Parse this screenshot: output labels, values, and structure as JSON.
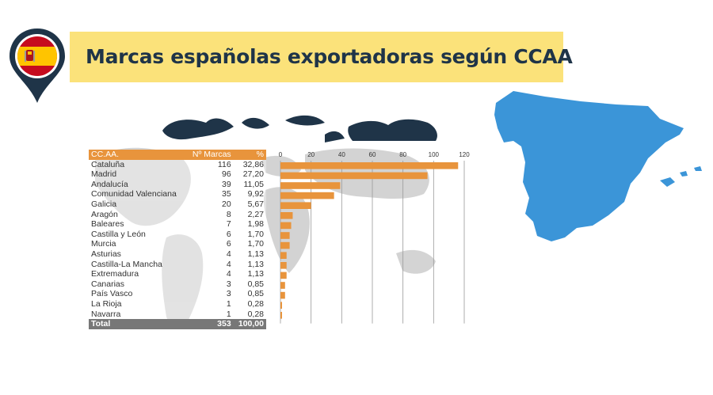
{
  "header": {
    "title": "Marcas españolas exportadoras según CCAA"
  },
  "icons": {
    "pin": "spain-flag-location-pin-icon",
    "map": "spain-map-icon",
    "background": "world-map-icon"
  },
  "colors": {
    "title_bg": "#fbe27a",
    "title_text": "#1f3448",
    "bar": "#e8943c",
    "spain_map": "#3b95d8",
    "pin": "#1f3448"
  },
  "table": {
    "headers": [
      "CC.AA.",
      "Nº Marcas",
      "%"
    ],
    "rows": [
      [
        "Cataluña",
        "116",
        "32,86"
      ],
      [
        "Madrid",
        "96",
        "27,20"
      ],
      [
        "Andalucía",
        "39",
        "11,05"
      ],
      [
        "Comunidad Valenciana",
        "35",
        "9,92"
      ],
      [
        "Galicia",
        "20",
        "5,67"
      ],
      [
        "Aragón",
        "8",
        "2,27"
      ],
      [
        "Baleares",
        "7",
        "1,98"
      ],
      [
        "Castilla y León",
        "6",
        "1,70"
      ],
      [
        "Murcia",
        "6",
        "1,70"
      ],
      [
        "Asturias",
        "4",
        "1,13"
      ],
      [
        "Castilla-La Mancha",
        "4",
        "1,13"
      ],
      [
        "Extremadura",
        "4",
        "1,13"
      ],
      [
        "Canarias",
        "3",
        "0,85"
      ],
      [
        "País Vasco",
        "3",
        "0,85"
      ],
      [
        "La Rioja",
        "1",
        "0,28"
      ],
      [
        "Navarra",
        "1",
        "0,28"
      ]
    ],
    "total": [
      "Total",
      "353",
      "100,00"
    ]
  },
  "chart_data": {
    "type": "bar",
    "orientation": "horizontal",
    "categories": [
      "Cataluña",
      "Madrid",
      "Andalucía",
      "Comunidad Valenciana",
      "Galicia",
      "Aragón",
      "Baleares",
      "Castilla y León",
      "Murcia",
      "Asturias",
      "Castilla-La Mancha",
      "Extremadura",
      "Canarias",
      "País Vasco",
      "La Rioja",
      "Navarra"
    ],
    "values": [
      116,
      96,
      39,
      35,
      20,
      8,
      7,
      6,
      6,
      4,
      4,
      4,
      3,
      3,
      1,
      1
    ],
    "xlim": [
      0,
      120
    ],
    "xticks": [
      "0",
      "20",
      "40",
      "60",
      "80",
      "100",
      "120"
    ],
    "grid": true
  }
}
